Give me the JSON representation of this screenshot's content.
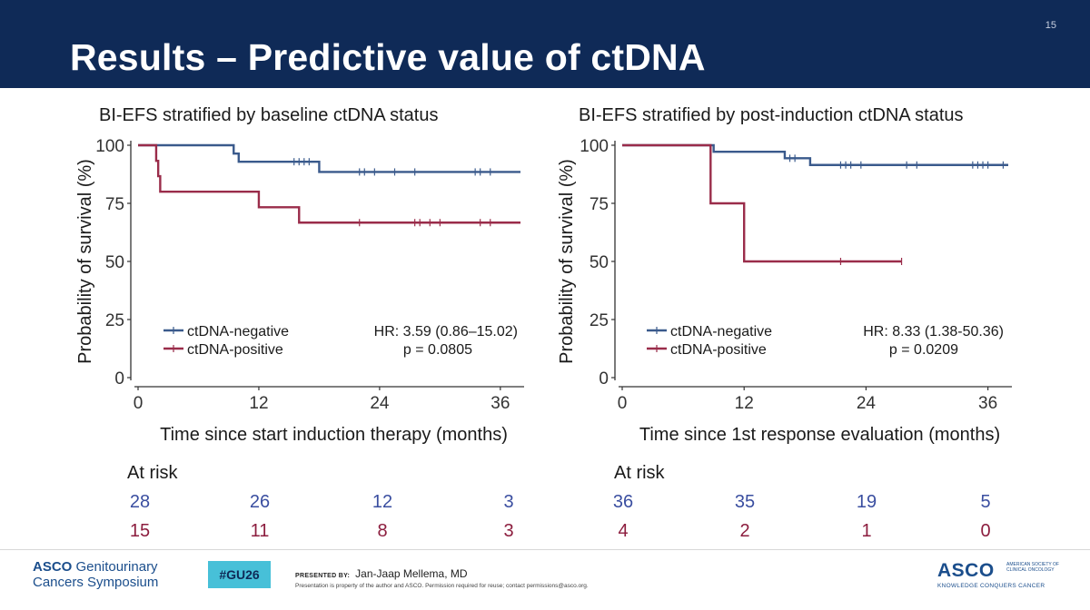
{
  "slide": {
    "title": "Results – Predictive value of ctDNA",
    "number": "15"
  },
  "colors": {
    "negative": "#3a5a8c",
    "positive": "#9a2c4a",
    "header_bg": "#0f2a57",
    "hashtag_bg": "#47c0d8"
  },
  "chart_data": [
    {
      "type": "line",
      "subtype": "kaplan-meier",
      "title": "BI-EFS stratified by baseline ctDNA status",
      "xlabel": "Time since start induction therapy (months)",
      "ylabel": "Probability of survival (%)",
      "xlim": [
        0,
        38
      ],
      "ylim": [
        0,
        100
      ],
      "xticks": [
        "0",
        "12",
        "24",
        "36"
      ],
      "yticks": [
        "0",
        "25",
        "50",
        "75",
        "100"
      ],
      "legend": [
        "ctDNA-negative",
        "ctDNA-positive"
      ],
      "legend_position": "bottom-left",
      "hr": "HR: 3.59 (0.86–15.02)",
      "p": "p = 0.0805",
      "series": [
        {
          "name": "ctDNA-negative",
          "steps": [
            [
              0,
              100
            ],
            [
              9.5,
              96.4
            ],
            [
              10,
              92.9
            ],
            [
              18,
              88.5
            ],
            [
              38,
              88.5
            ]
          ],
          "censors": [
            [
              15.5,
              92.9
            ],
            [
              16,
              92.9
            ],
            [
              16.5,
              92.9
            ],
            [
              17,
              92.9
            ],
            [
              22,
              88.5
            ],
            [
              22.5,
              88.5
            ],
            [
              23.5,
              88.5
            ],
            [
              25.5,
              88.5
            ],
            [
              27.5,
              88.5
            ],
            [
              33.5,
              88.5
            ],
            [
              34,
              88.5
            ],
            [
              35,
              88.5
            ]
          ]
        },
        {
          "name": "ctDNA-positive",
          "steps": [
            [
              0,
              100
            ],
            [
              1.8,
              93.3
            ],
            [
              2,
              86.7
            ],
            [
              2.2,
              80
            ],
            [
              12,
              73.3
            ],
            [
              16,
              66.7
            ],
            [
              38,
              66.7
            ]
          ],
          "censors": [
            [
              22,
              66.7
            ],
            [
              27.5,
              66.7
            ],
            [
              28,
              66.7
            ],
            [
              29,
              66.7
            ],
            [
              30,
              66.7
            ],
            [
              34,
              66.7
            ],
            [
              35,
              66.7
            ]
          ]
        }
      ],
      "at_risk": {
        "label": "At risk",
        "times": [
          "0",
          "12",
          "24",
          "36"
        ],
        "negative": [
          "28",
          "26",
          "12",
          "3"
        ],
        "positive": [
          "15",
          "11",
          "8",
          "3"
        ]
      }
    },
    {
      "type": "line",
      "subtype": "kaplan-meier",
      "title": "BI-EFS stratified by post-induction ctDNA status",
      "xlabel": "Time since 1st response evaluation (months)",
      "ylabel": "Probability of survival (%)",
      "xlim": [
        0,
        38
      ],
      "ylim": [
        0,
        100
      ],
      "xticks": [
        "0",
        "12",
        "24",
        "36"
      ],
      "yticks": [
        "0",
        "25",
        "50",
        "75",
        "100"
      ],
      "legend": [
        "ctDNA-negative",
        "ctDNA-positive"
      ],
      "legend_position": "bottom-left",
      "hr": "HR: 8.33 (1.38-50.36)",
      "p": "p = 0.0209",
      "series": [
        {
          "name": "ctDNA-negative",
          "steps": [
            [
              0,
              100
            ],
            [
              9,
              97.2
            ],
            [
              16,
              94.4
            ],
            [
              18.5,
              91.5
            ],
            [
              38,
              91.5
            ]
          ],
          "censors": [
            [
              16.5,
              94.4
            ],
            [
              17,
              94.4
            ],
            [
              21.5,
              91.5
            ],
            [
              22,
              91.5
            ],
            [
              22.5,
              91.5
            ],
            [
              23.5,
              91.5
            ],
            [
              28,
              91.5
            ],
            [
              29,
              91.5
            ],
            [
              34.5,
              91.5
            ],
            [
              35,
              91.5
            ],
            [
              35.5,
              91.5
            ],
            [
              36,
              91.5
            ],
            [
              37.5,
              91.5
            ]
          ]
        },
        {
          "name": "ctDNA-positive",
          "steps": [
            [
              0,
              100
            ],
            [
              8.7,
              75
            ],
            [
              12,
              50
            ],
            [
              27.5,
              50
            ]
          ],
          "censors": [
            [
              21.5,
              50
            ],
            [
              27.5,
              50
            ]
          ]
        }
      ],
      "at_risk": {
        "label": "At risk",
        "times": [
          "0",
          "12",
          "24",
          "36"
        ],
        "negative": [
          "36",
          "35",
          "19",
          "5"
        ],
        "positive": [
          "4",
          "2",
          "1",
          "0"
        ]
      }
    }
  ],
  "footer": {
    "logo_bold": "ASCO",
    "logo_line1": "Genitourinary",
    "logo_line2": "Cancers Symposium",
    "hashtag": "#GU26",
    "presented_by_label": "PRESENTED BY:",
    "presenter": "Jan-Jaap Mellema, MD",
    "disclaimer": "Presentation is property of the author and ASCO. Permission required for reuse; contact permissions@asco.org.",
    "asco_right": "ASCO",
    "asco_right_small": "AMERICAN SOCIETY OF CLINICAL ONCOLOGY",
    "asco_tagline": "KNOWLEDGE CONQUERS CANCER"
  }
}
